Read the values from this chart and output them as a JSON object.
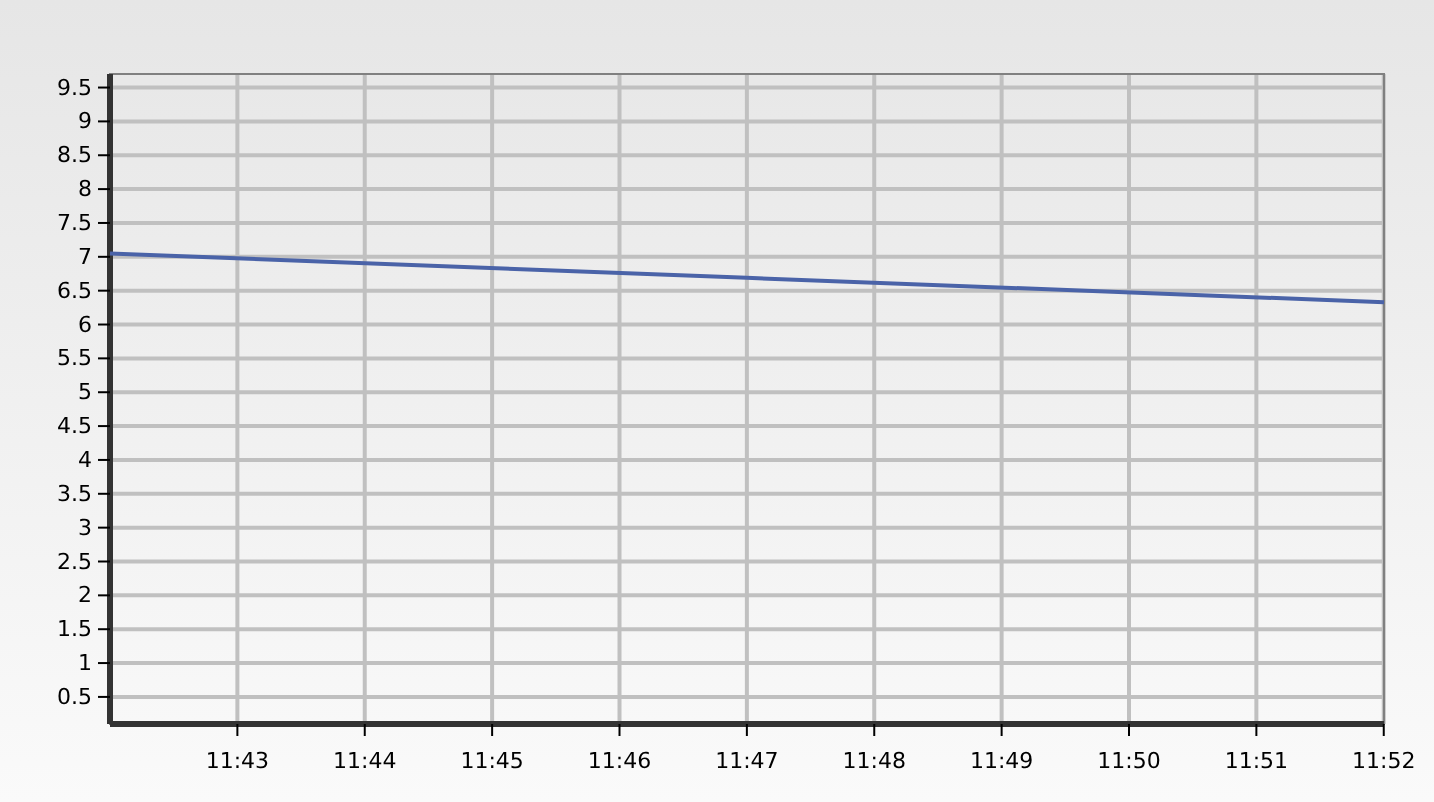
{
  "chart_data": {
    "type": "line",
    "x": [
      11.7,
      11.7833,
      11.8667
    ],
    "series": [
      {
        "color": "#4a63a8",
        "values": [
          7.05,
          6.69,
          6.33
        ]
      }
    ],
    "xlim": [
      11.7,
      11.8667
    ],
    "xticks": [
      {
        "value": 11.716667,
        "label": "11:43"
      },
      {
        "value": 11.733333,
        "label": "11:44"
      },
      {
        "value": 11.75,
        "label": "11:45"
      },
      {
        "value": 11.766667,
        "label": "11:46"
      },
      {
        "value": 11.783333,
        "label": "11:47"
      },
      {
        "value": 11.8,
        "label": "11:48"
      },
      {
        "value": 11.816667,
        "label": "11:49"
      },
      {
        "value": 11.833333,
        "label": "11:50"
      },
      {
        "value": 11.85,
        "label": "11:51"
      },
      {
        "value": 11.866667,
        "label": "11:52"
      }
    ],
    "ylim": [
      0.1,
      9.7
    ],
    "yticks": [
      0.5,
      1,
      1.5,
      2,
      2.5,
      3,
      3.5,
      4,
      4.5,
      5,
      5.5,
      6,
      6.5,
      7,
      7.5,
      8,
      8.5,
      9,
      9.5
    ],
    "grid": true,
    "marker": "none",
    "line_style": "solid"
  }
}
